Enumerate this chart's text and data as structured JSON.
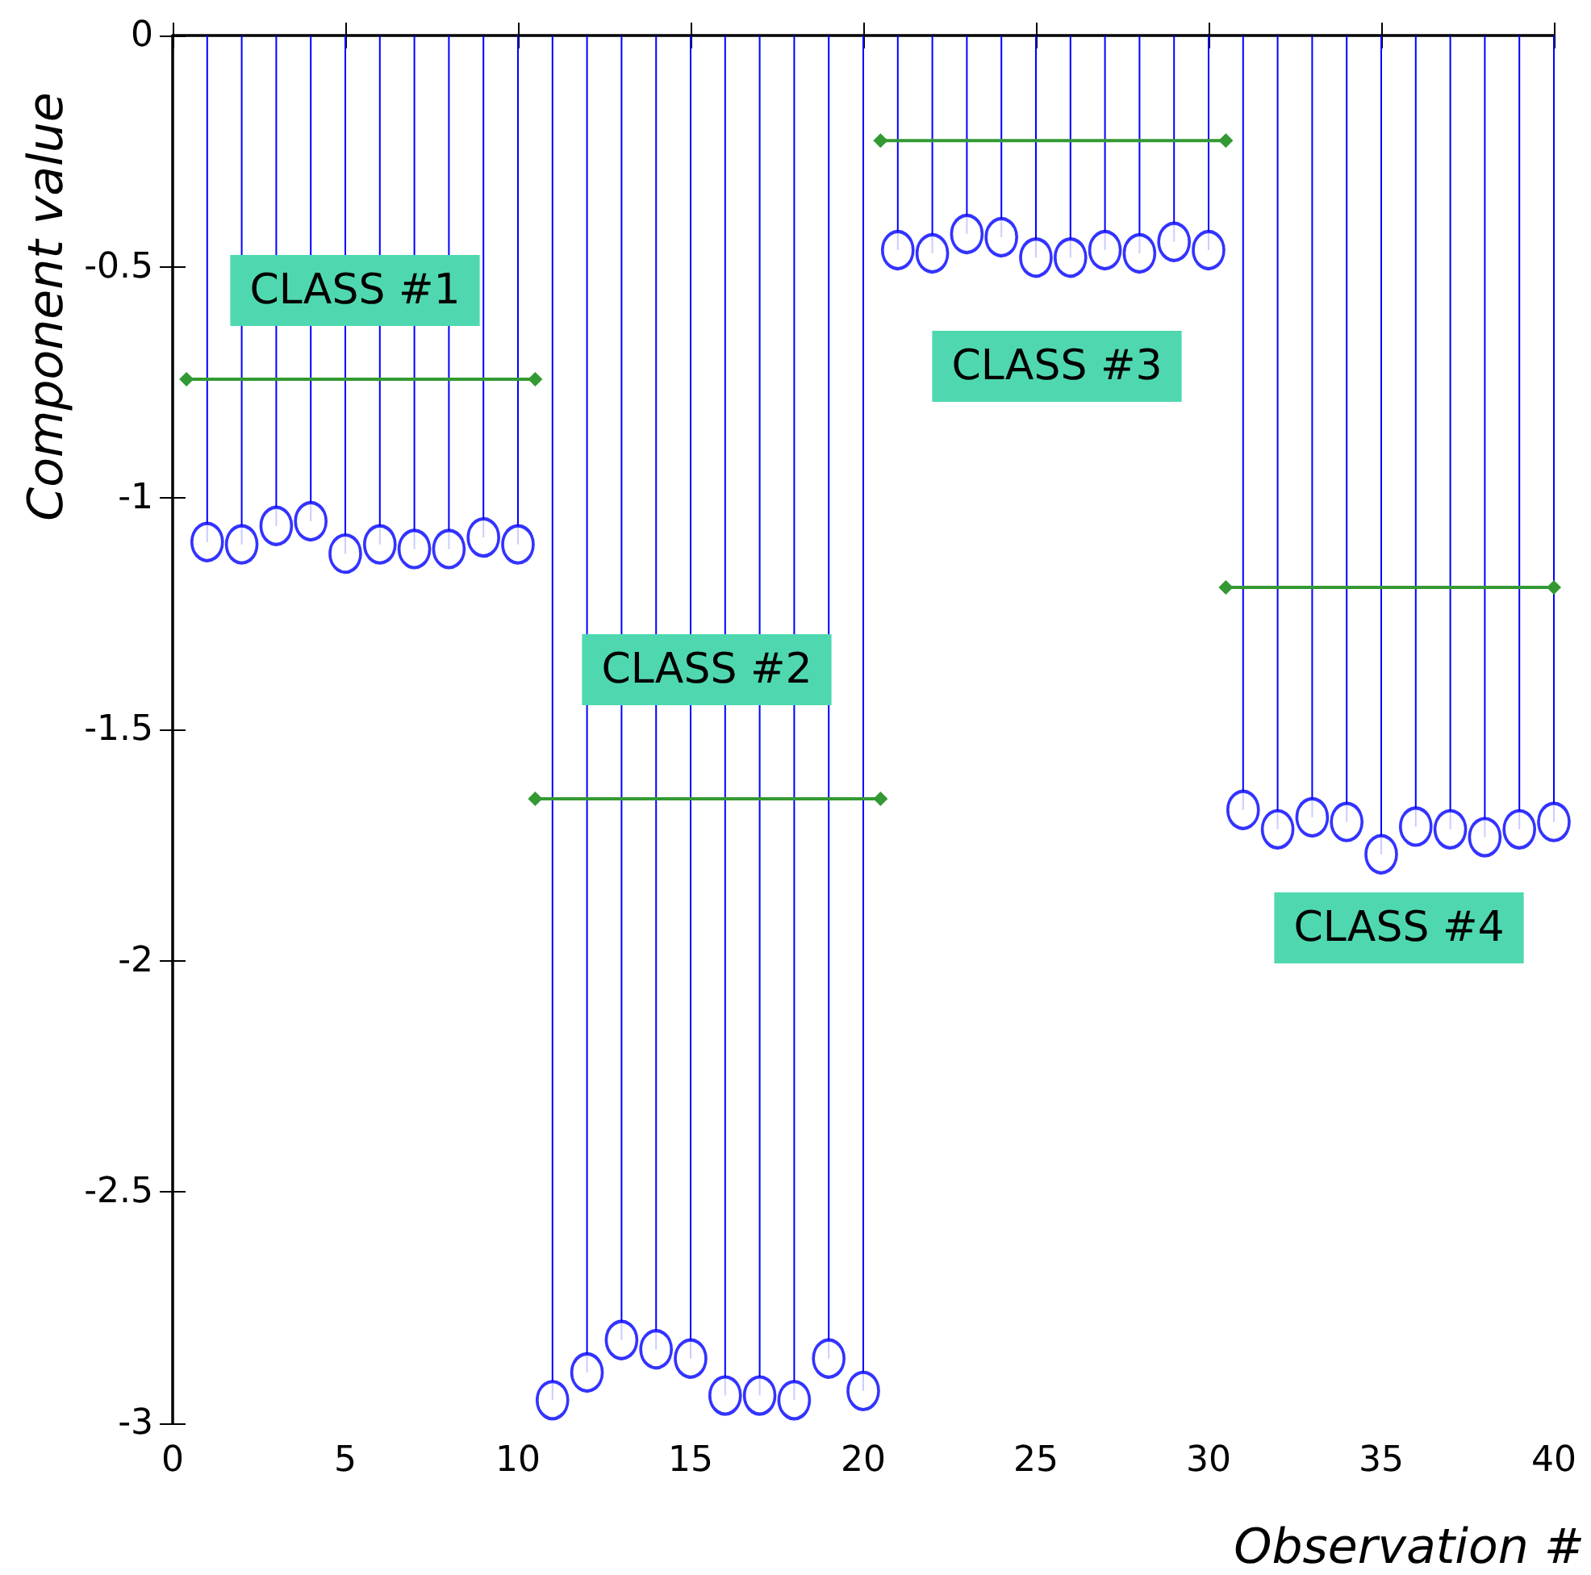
{
  "chart_data": {
    "type": "lollipop",
    "xlabel": "Observation #",
    "ylabel": "Component value",
    "x": [
      1,
      2,
      3,
      4,
      5,
      6,
      7,
      8,
      9,
      10,
      11,
      12,
      13,
      14,
      15,
      16,
      17,
      18,
      19,
      20,
      21,
      22,
      23,
      24,
      25,
      26,
      27,
      28,
      29,
      30,
      31,
      32,
      33,
      34,
      35,
      36,
      37,
      38,
      39,
      40
    ],
    "xlim": [
      0,
      40
    ],
    "xticks": [
      0,
      5,
      10,
      15,
      20,
      25,
      30,
      35,
      40
    ],
    "ylim": [
      -3,
      0
    ],
    "yticks": [
      -3,
      -2.5,
      -2,
      -1.5,
      -1,
      -0.5,
      0
    ],
    "series": [
      {
        "color": "#0000ff",
        "marker": "circle",
        "values": [
          -1.095,
          -1.1,
          -1.06,
          -1.05,
          -1.12,
          -1.1,
          -1.11,
          -1.11,
          -1.085,
          -1.1,
          -2.95,
          -2.89,
          -2.82,
          -2.84,
          -2.86,
          -2.94,
          -2.94,
          -2.95,
          -2.86,
          -2.93,
          -0.464,
          -0.471,
          -0.429,
          -0.436,
          -0.48,
          -0.48,
          -0.464,
          -0.471,
          -0.446,
          -0.464,
          -1.674,
          -1.716,
          -1.69,
          -1.7,
          -1.77,
          -1.71,
          -1.716,
          -1.733,
          -1.716,
          -1.7
        ]
      },
      {
        "type": "line",
        "color": "#339933",
        "marker": "diamond",
        "x": [
          0.4,
          10.5
        ],
        "values": [
          -0.743,
          -0.743
        ]
      },
      {
        "type": "line",
        "color": "#339933",
        "marker": "diamond",
        "x": [
          10.5,
          20.5
        ],
        "values": [
          -1.65,
          -1.65
        ]
      },
      {
        "type": "line",
        "color": "#339933",
        "marker": "diamond",
        "x": [
          20.5,
          30.5
        ],
        "values": [
          -0.227,
          -0.227
        ]
      },
      {
        "type": "line",
        "color": "#339933",
        "marker": "diamond",
        "x": [
          30.5,
          40
        ],
        "values": [
          -1.193,
          -1.193
        ]
      }
    ],
    "annotations": [
      "CLASS #1",
      "CLASS #2",
      "CLASS #3",
      "CLASS #4"
    ]
  }
}
